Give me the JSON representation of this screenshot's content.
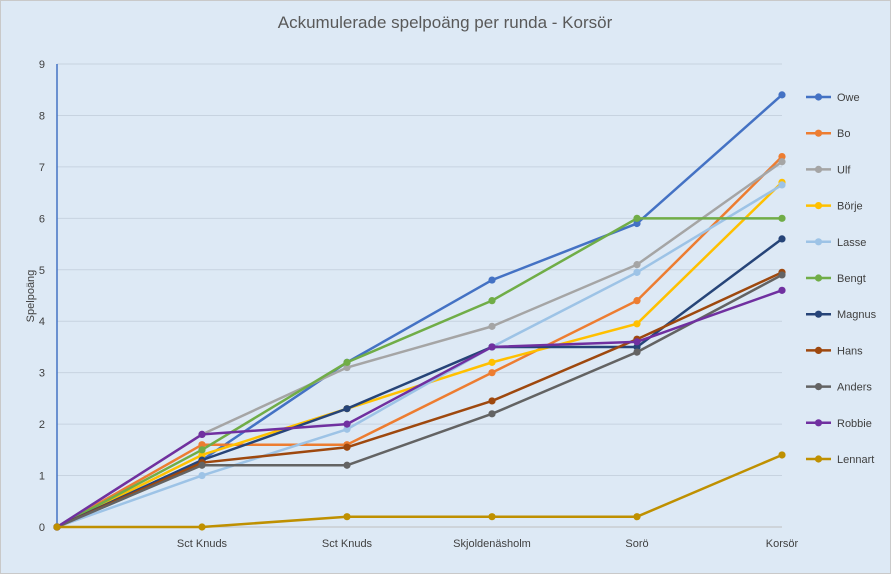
{
  "chart_data": {
    "type": "line",
    "title": "Ackumulerade spelpoäng per runda - Korsör",
    "xlabel": "",
    "ylabel": "Spelpoäng",
    "categories": [
      "",
      "Sct Knuds",
      "Sct Knuds",
      "Skjoldenäsholm",
      "Sorö",
      "Korsör"
    ],
    "ylim": [
      0,
      9
    ],
    "yticks": [
      0,
      1,
      2,
      3,
      4,
      5,
      6,
      7,
      8,
      9
    ],
    "grid": "horizontal",
    "legend_position": "right",
    "series": [
      {
        "name": "Owe",
        "color": "#4472c4",
        "values": [
          0,
          1.3,
          3.2,
          4.8,
          5.9,
          8.4
        ]
      },
      {
        "name": "Bo",
        "color": "#ed7d31",
        "values": [
          0,
          1.6,
          1.6,
          3.0,
          4.4,
          7.2
        ]
      },
      {
        "name": "Ulf",
        "color": "#a5a5a5",
        "values": [
          0,
          1.8,
          3.1,
          3.9,
          5.1,
          7.1
        ]
      },
      {
        "name": "Börje",
        "color": "#ffc000",
        "values": [
          0,
          1.4,
          2.3,
          3.2,
          3.95,
          6.7
        ]
      },
      {
        "name": "Lasse",
        "color": "#9dc3e6",
        "values": [
          0,
          1.0,
          1.9,
          3.5,
          4.95,
          6.65
        ]
      },
      {
        "name": "Bengt",
        "color": "#70ad47",
        "values": [
          0,
          1.5,
          3.2,
          4.4,
          6.0,
          6.0
        ]
      },
      {
        "name": "Magnus",
        "color": "#264478",
        "values": [
          0,
          1.3,
          2.3,
          3.5,
          3.5,
          5.6
        ]
      },
      {
        "name": "Hans",
        "color": "#9e480e",
        "values": [
          0,
          1.25,
          1.55,
          2.45,
          3.65,
          4.95
        ]
      },
      {
        "name": "Anders",
        "color": "#636363",
        "values": [
          0,
          1.2,
          1.2,
          2.2,
          3.4,
          4.9
        ]
      },
      {
        "name": "Robbie",
        "color": "#7030a0",
        "values": [
          0,
          1.8,
          2.0,
          3.5,
          3.6,
          4.6
        ]
      },
      {
        "name": "Lennart",
        "color": "#bf9000",
        "values": [
          0,
          0,
          0.2,
          0.2,
          0.2,
          1.4
        ]
      }
    ]
  }
}
